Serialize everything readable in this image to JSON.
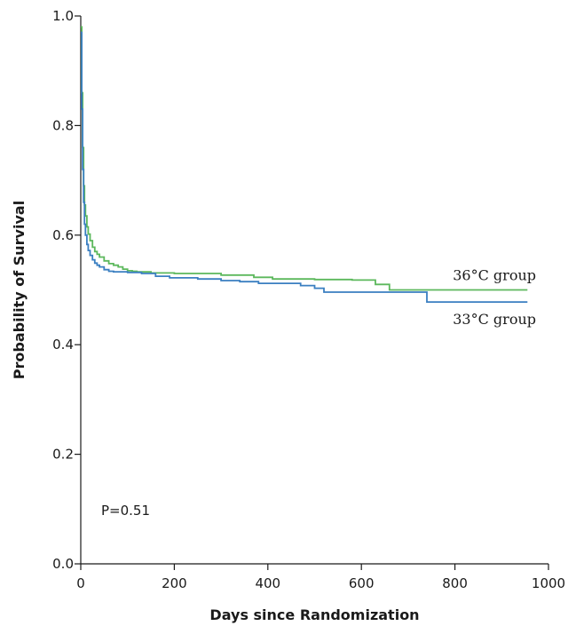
{
  "chart_data": {
    "type": "line",
    "title": "",
    "xlabel": "Days since Randomization",
    "ylabel": "Probability of Survival",
    "xlim": [
      0,
      1000
    ],
    "ylim": [
      0.0,
      1.0
    ],
    "x_ticks": [
      0,
      200,
      400,
      600,
      800,
      1000
    ],
    "x_tick_labels": [
      "0",
      "200",
      "400",
      "600",
      "800",
      "1000"
    ],
    "y_ticks": [
      0.0,
      0.2,
      0.4,
      0.6,
      0.8,
      1.0
    ],
    "y_tick_labels": [
      "0.0",
      "0.2",
      "0.4",
      "0.6",
      "0.8",
      "1.0"
    ],
    "grid": false,
    "annotation": "P=0.51",
    "series": [
      {
        "name": "36°C group",
        "color": "#5cb85c",
        "step": true,
        "points": [
          [
            0,
            0.98
          ],
          [
            2,
            0.86
          ],
          [
            4,
            0.76
          ],
          [
            6,
            0.69
          ],
          [
            8,
            0.655
          ],
          [
            10,
            0.635
          ],
          [
            13,
            0.615
          ],
          [
            16,
            0.602
          ],
          [
            20,
            0.59
          ],
          [
            25,
            0.578
          ],
          [
            30,
            0.57
          ],
          [
            35,
            0.565
          ],
          [
            40,
            0.56
          ],
          [
            50,
            0.553
          ],
          [
            60,
            0.548
          ],
          [
            70,
            0.545
          ],
          [
            80,
            0.542
          ],
          [
            90,
            0.538
          ],
          [
            100,
            0.535
          ],
          [
            110,
            0.534
          ],
          [
            120,
            0.533
          ],
          [
            150,
            0.531
          ],
          [
            200,
            0.53
          ],
          [
            300,
            0.527
          ],
          [
            370,
            0.523
          ],
          [
            410,
            0.52
          ],
          [
            500,
            0.519
          ],
          [
            580,
            0.518
          ],
          [
            630,
            0.51
          ],
          [
            660,
            0.5
          ],
          [
            750,
            0.5
          ],
          [
            955,
            0.5
          ]
        ]
      },
      {
        "name": "33°C group",
        "color": "#3a7fc1",
        "step": true,
        "points": [
          [
            0,
            0.97
          ],
          [
            2,
            0.83
          ],
          [
            4,
            0.72
          ],
          [
            6,
            0.66
          ],
          [
            8,
            0.62
          ],
          [
            10,
            0.6
          ],
          [
            13,
            0.583
          ],
          [
            16,
            0.572
          ],
          [
            20,
            0.563
          ],
          [
            25,
            0.555
          ],
          [
            30,
            0.549
          ],
          [
            35,
            0.545
          ],
          [
            40,
            0.542
          ],
          [
            50,
            0.537
          ],
          [
            60,
            0.534
          ],
          [
            70,
            0.533
          ],
          [
            100,
            0.532
          ],
          [
            130,
            0.53
          ],
          [
            160,
            0.525
          ],
          [
            190,
            0.522
          ],
          [
            250,
            0.52
          ],
          [
            300,
            0.517
          ],
          [
            340,
            0.515
          ],
          [
            380,
            0.512
          ],
          [
            470,
            0.508
          ],
          [
            500,
            0.503
          ],
          [
            520,
            0.496
          ],
          [
            600,
            0.496
          ],
          [
            700,
            0.496
          ],
          [
            740,
            0.478
          ],
          [
            800,
            0.478
          ],
          [
            955,
            0.478
          ]
        ]
      }
    ]
  }
}
